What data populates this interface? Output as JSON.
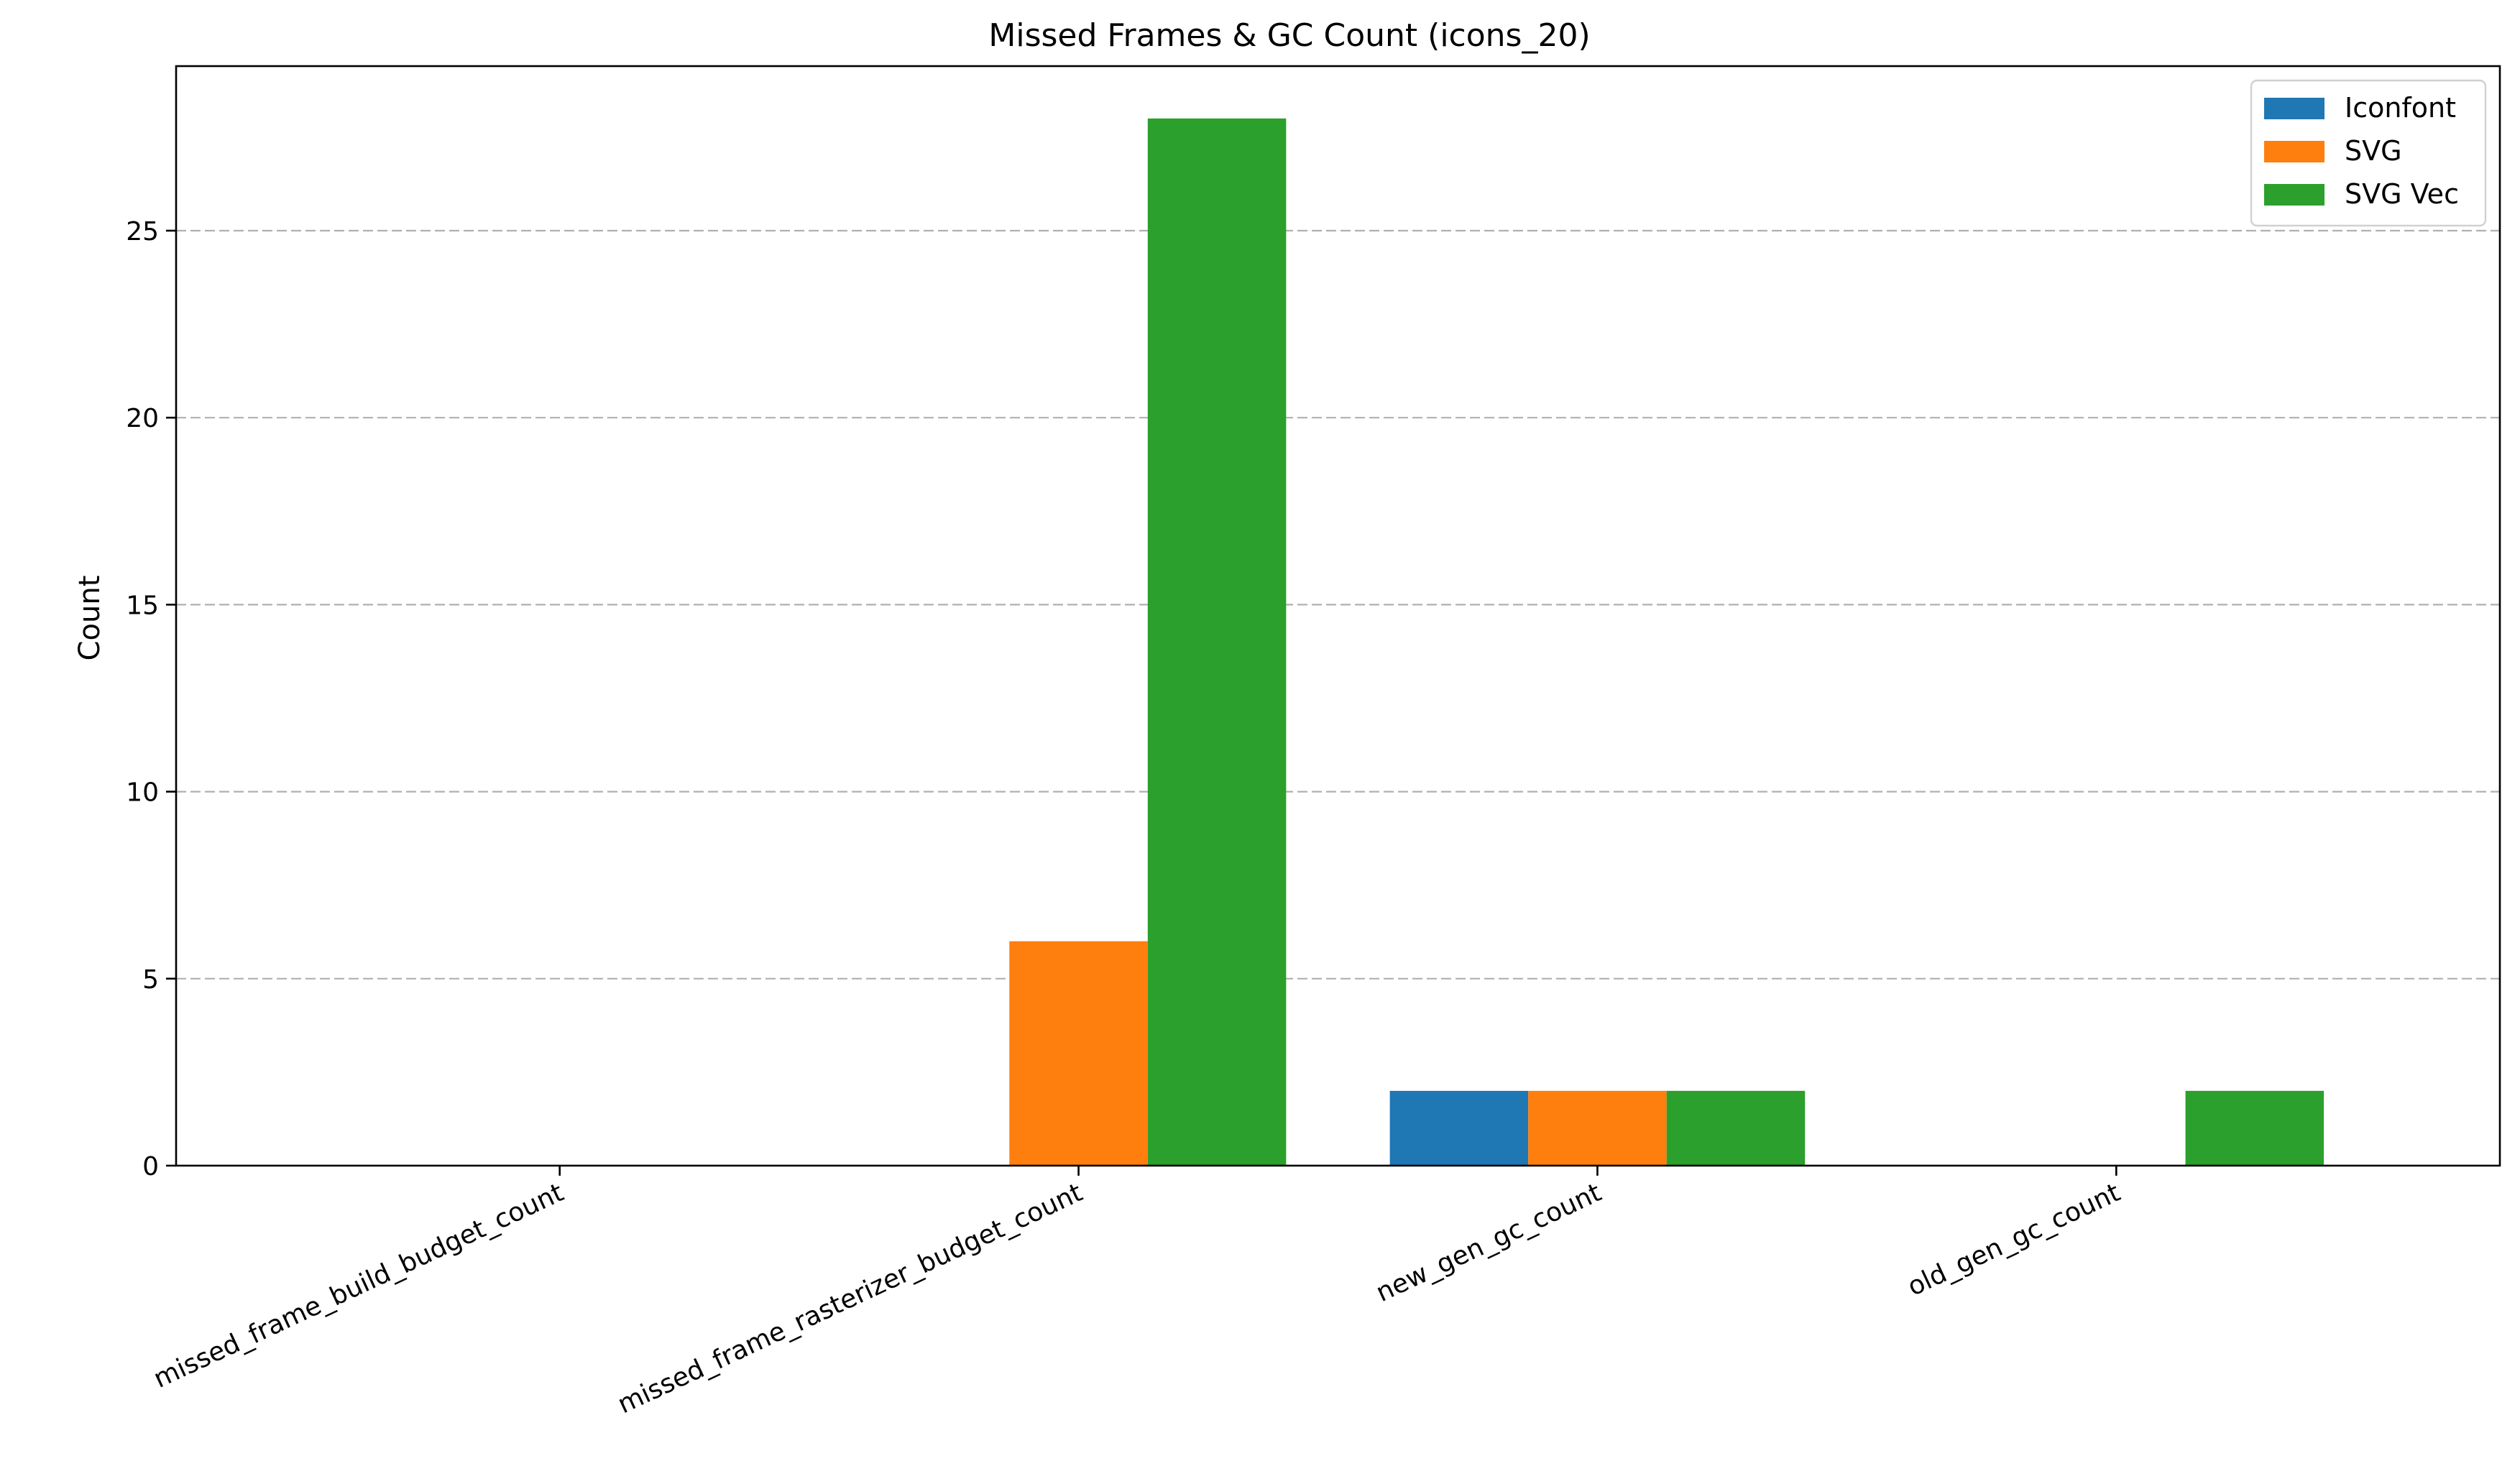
{
  "chart_data": {
    "type": "bar",
    "title": "Missed Frames & GC Count (icons_20)",
    "xlabel": "",
    "ylabel": "Count",
    "categories": [
      "missed_frame_build_budget_count",
      "missed_frame_rasterizer_budget_count",
      "new_gen_gc_count",
      "old_gen_gc_count"
    ],
    "series": [
      {
        "name": "Iconfont",
        "color": "#1f77b4",
        "values": [
          0,
          0,
          2,
          0
        ]
      },
      {
        "name": "SVG",
        "color": "#ff7f0e",
        "values": [
          0,
          6,
          2,
          0
        ]
      },
      {
        "name": "SVG Vec",
        "color": "#2ca02c",
        "values": [
          0,
          28,
          2,
          2
        ]
      }
    ],
    "ylim": [
      0,
      29.4
    ],
    "yticks": [
      "0",
      "5",
      "10",
      "15",
      "20",
      "25"
    ],
    "grid": "y-dashed",
    "legend_position": "top-right"
  }
}
